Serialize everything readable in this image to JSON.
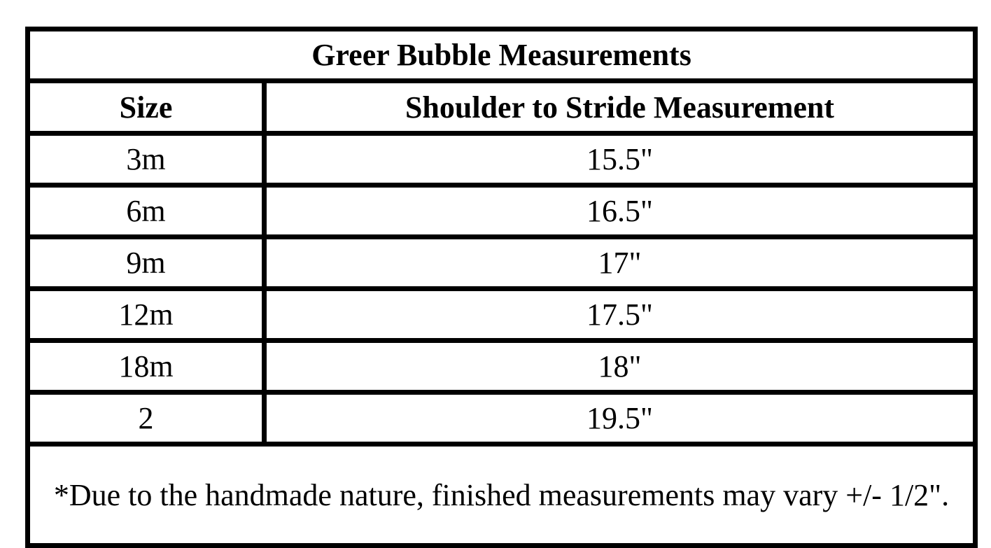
{
  "table": {
    "title": "Greer Bubble Measurements",
    "columns": [
      "Size",
      "Shoulder to Stride Measurement"
    ],
    "rows": [
      {
        "size": "3m",
        "measurement": "15.5\""
      },
      {
        "size": "6m",
        "measurement": "16.5\""
      },
      {
        "size": "9m",
        "measurement": "17\""
      },
      {
        "size": "12m",
        "measurement": "17.5\""
      },
      {
        "size": "18m",
        "measurement": "18\""
      },
      {
        "size": "2",
        "measurement": "19.5\""
      }
    ],
    "footnote": "*Due to the handmade nature, finished measurements may vary +/- 1/2\"."
  }
}
